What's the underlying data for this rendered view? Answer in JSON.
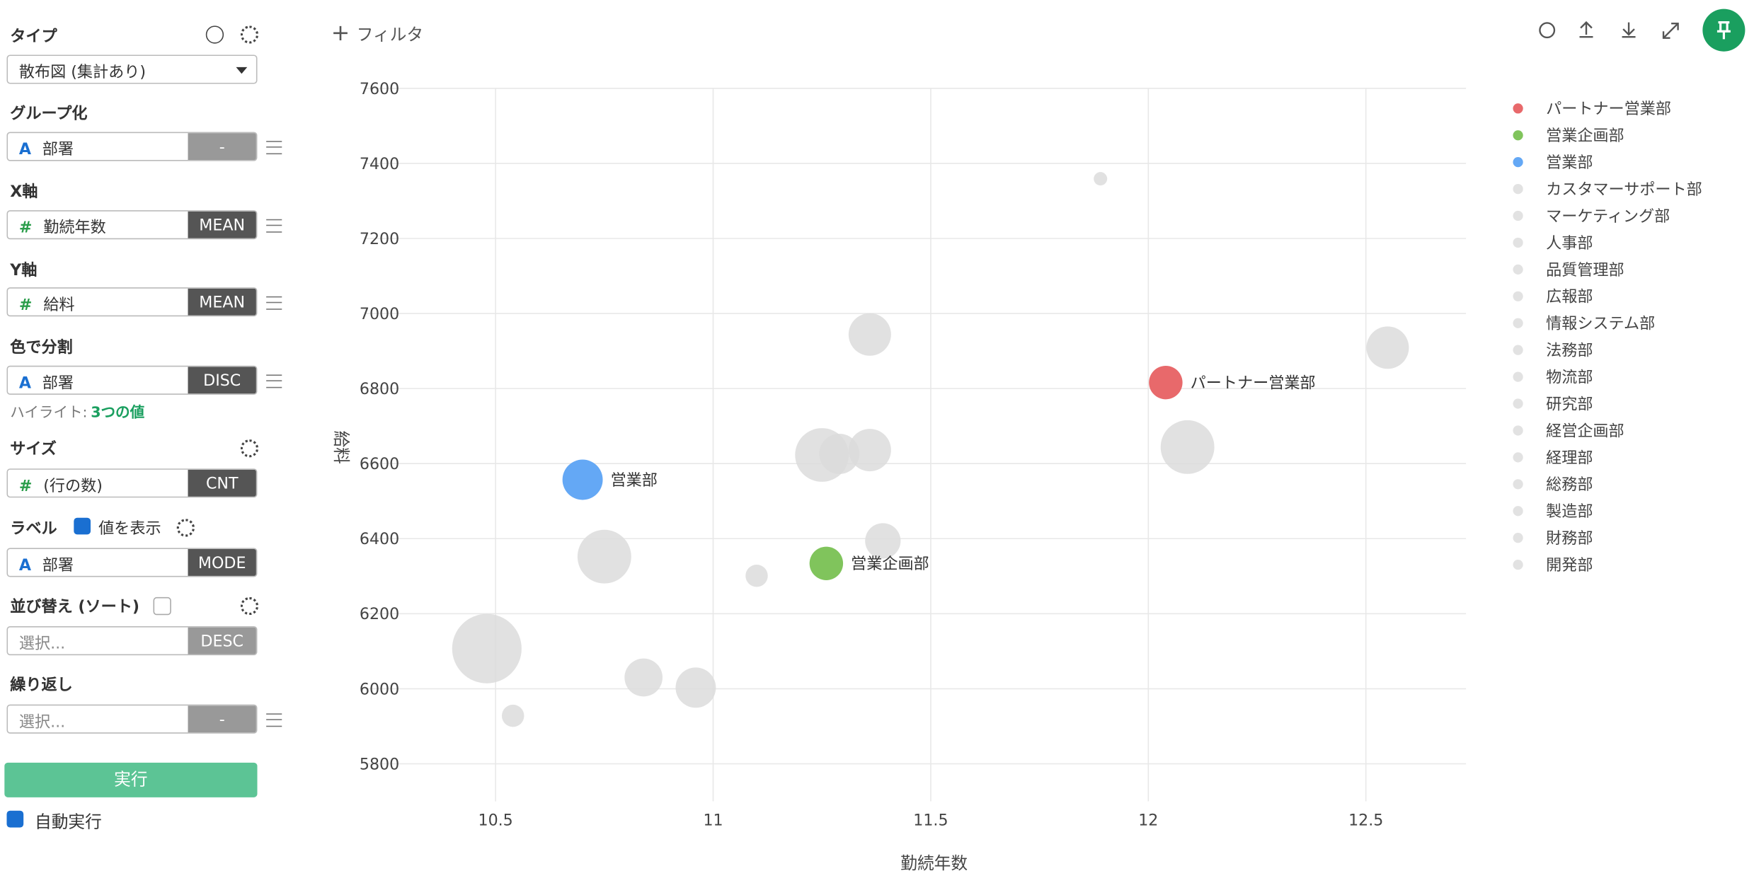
{
  "sidebar": {
    "type_title": "タイプ",
    "type_value": "散布図 (集計あり)",
    "sections": [
      {
        "title": "グループ化",
        "icon": "A",
        "field": "部署",
        "agg": "-"
      },
      {
        "title": "X軸",
        "icon": "#",
        "field": "勤続年数",
        "agg": "MEAN"
      },
      {
        "title": "Y軸",
        "icon": "#",
        "field": "給料",
        "agg": "MEAN"
      },
      {
        "title": "色で分割",
        "icon": "A",
        "field": "部署",
        "agg": "DISC"
      },
      {
        "title": "サイズ",
        "icon": "#",
        "field": "(行の数)",
        "agg": "CNT"
      },
      {
        "title": "ラベル",
        "icon": "A",
        "field": "部署",
        "agg": "MODE"
      },
      {
        "title": "並び替え (ソート)",
        "field": "選択...",
        "agg": "DESC"
      },
      {
        "title": "繰り返し",
        "field": "選択...",
        "agg": "-"
      }
    ],
    "highlight_label": "ハイライト:",
    "highlight_value": "3つの値",
    "label_checkbox": "値を表示",
    "run": "実行",
    "auto_run": "自動実行"
  },
  "toolbar": {
    "filter": "フィルタ"
  },
  "chart_data": {
    "type": "scatter",
    "xlabel": "勤続年数",
    "ylabel": "給料",
    "xlim": [
      10.2,
      12.73
    ],
    "xticks": [
      10.5,
      11,
      11.5,
      12,
      12.5
    ],
    "ylim": [
      5700,
      7600
    ],
    "yticks": [
      5800,
      6000,
      6200,
      6400,
      6600,
      6800,
      7000,
      7200,
      7400,
      7600
    ],
    "grid": true,
    "legend": [
      {
        "name": "パートナー営業部",
        "color": "#e8696b"
      },
      {
        "name": "営業企画部",
        "color": "#80c45c"
      },
      {
        "name": "営業部",
        "color": "#64a8f5"
      },
      {
        "name": "カスタマーサポート部",
        "color": "#e2e2e2"
      },
      {
        "name": "マーケティング部",
        "color": "#e2e2e2"
      },
      {
        "name": "人事部",
        "color": "#e2e2e2"
      },
      {
        "name": "品質管理部",
        "color": "#e2e2e2"
      },
      {
        "name": "広報部",
        "color": "#e2e2e2"
      },
      {
        "name": "情報システム部",
        "color": "#e2e2e2"
      },
      {
        "name": "法務部",
        "color": "#e2e2e2"
      },
      {
        "name": "物流部",
        "color": "#e2e2e2"
      },
      {
        "name": "研究部",
        "color": "#e2e2e2"
      },
      {
        "name": "経営企画部",
        "color": "#e2e2e2"
      },
      {
        "name": "経理部",
        "color": "#e2e2e2"
      },
      {
        "name": "総務部",
        "color": "#e2e2e2"
      },
      {
        "name": "製造部",
        "color": "#e2e2e2"
      },
      {
        "name": "財務部",
        "color": "#e2e2e2"
      },
      {
        "name": "開発部",
        "color": "#e2e2e2"
      }
    ],
    "points": [
      {
        "x": 11.89,
        "y": 7359,
        "size": 4,
        "color": "#dcdcdc"
      },
      {
        "x": 11.36,
        "y": 6944,
        "size": 40,
        "color": "#dcdcdc"
      },
      {
        "x": 12.55,
        "y": 6909,
        "size": 40,
        "color": "#dcdcdc"
      },
      {
        "x": 12.09,
        "y": 6644,
        "size": 64,
        "color": "#dcdcdc"
      },
      {
        "x": 11.25,
        "y": 6623,
        "size": 64,
        "color": "#dcdcdc"
      },
      {
        "x": 11.29,
        "y": 6626,
        "size": 36,
        "color": "#dcdcdc"
      },
      {
        "x": 11.36,
        "y": 6636,
        "size": 40,
        "color": "#dcdcdc"
      },
      {
        "x": 11.39,
        "y": 6394,
        "size": 28,
        "color": "#dcdcdc"
      },
      {
        "x": 10.75,
        "y": 6352,
        "size": 64,
        "color": "#dcdcdc"
      },
      {
        "x": 11.1,
        "y": 6301,
        "size": 11,
        "color": "#dcdcdc"
      },
      {
        "x": 10.48,
        "y": 6107,
        "size": 107,
        "color": "#dcdcdc"
      },
      {
        "x": 10.84,
        "y": 6030,
        "size": 32,
        "color": "#dcdcdc"
      },
      {
        "x": 10.96,
        "y": 6003,
        "size": 36,
        "color": "#dcdcdc"
      },
      {
        "x": 10.54,
        "y": 5928,
        "size": 11,
        "color": "#dcdcdc"
      },
      {
        "x": 12.04,
        "y": 6816,
        "size": 25,
        "color": "#e8696b",
        "label": "パートナー営業部"
      },
      {
        "x": 11.26,
        "y": 6334,
        "size": 25,
        "color": "#80c45c",
        "label": "営業企画部"
      },
      {
        "x": 10.7,
        "y": 6557,
        "size": 36,
        "color": "#64a8f5",
        "label": "営業部"
      }
    ]
  }
}
